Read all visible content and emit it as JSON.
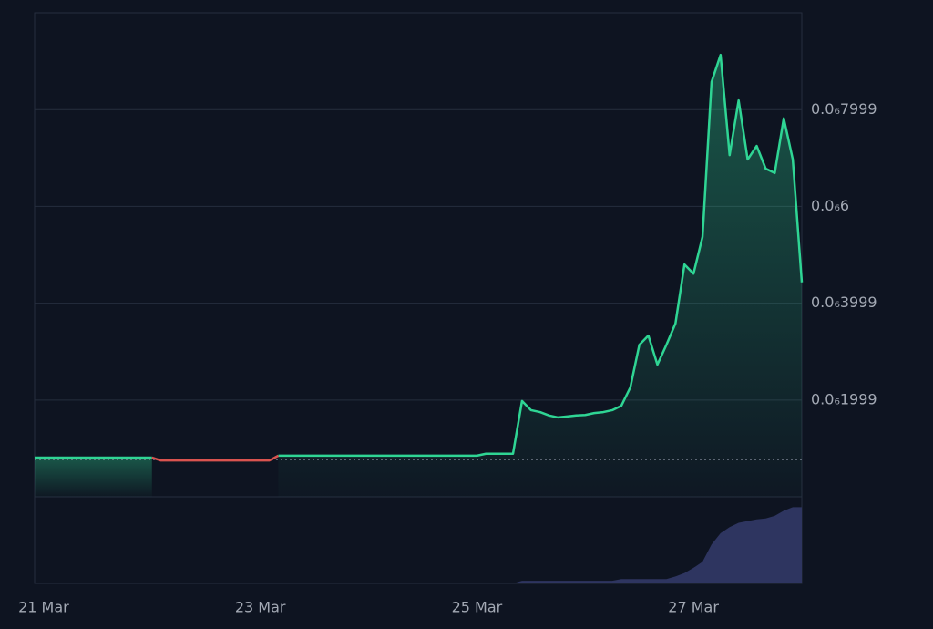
{
  "chart_data": {
    "type": "line",
    "categories": [
      null,
      "21 Mar",
      null,
      null,
      null,
      null,
      null,
      null,
      null,
      null,
      null,
      null,
      null,
      null,
      null,
      null,
      null,
      null,
      null,
      null,
      null,
      null,
      null,
      null,
      null,
      "23 Mar",
      null,
      null,
      null,
      null,
      null,
      null,
      null,
      null,
      null,
      null,
      null,
      null,
      null,
      null,
      null,
      null,
      null,
      null,
      null,
      null,
      null,
      null,
      null,
      "25 Mar",
      null,
      null,
      null,
      null,
      null,
      null,
      null,
      null,
      null,
      null,
      null,
      null,
      null,
      null,
      null,
      null,
      null,
      null,
      null,
      null,
      null,
      null,
      null,
      "27 Mar",
      null,
      null,
      null,
      null,
      null,
      null,
      null,
      null,
      null,
      null,
      null,
      null
    ],
    "series": [
      {
        "color": "#2fd594",
        "values": [
          8.1e-08,
          8.1e-08,
          8.1e-08,
          8.1e-08,
          8.1e-08,
          8.1e-08,
          8.1e-08,
          8.1e-08,
          8.1e-08,
          8.1e-08,
          8.1e-08,
          8.1e-08,
          8.1e-08,
          8.1e-08,
          null,
          null,
          null,
          null,
          null,
          null,
          null,
          null,
          null,
          null,
          null,
          null,
          null,
          8.5e-08,
          8.5e-08,
          8.5e-08,
          8.5e-08,
          8.5e-08,
          8.5e-08,
          8.5e-08,
          8.5e-08,
          8.5e-08,
          8.5e-08,
          8.5e-08,
          8.5e-08,
          8.5e-08,
          8.5e-08,
          8.5e-08,
          8.5e-08,
          8.5e-08,
          8.5e-08,
          8.5e-08,
          8.5e-08,
          8.5e-08,
          8.5e-08,
          8.5e-08,
          8.9e-08,
          8.9e-08,
          8.9e-08,
          8.9e-08,
          1.98e-07,
          1.79e-07,
          1.75e-07,
          1.68e-07,
          1.64e-07,
          1.66e-07,
          1.68e-07,
          1.69e-07,
          1.73e-07,
          1.75e-07,
          1.79e-07,
          1.88e-07,
          2.26e-07,
          3.14e-07,
          3.33e-07,
          2.73e-07,
          3.14e-07,
          3.58e-07,
          4.8e-07,
          4.61e-07,
          5.37e-07,
          8.57e-07,
          9.13e-07,
          7.06e-07,
          8.19e-07,
          6.97e-07,
          7.25e-07,
          6.78e-07,
          6.69e-07,
          7.82e-07,
          6.97e-07,
          4.43e-07
        ]
      },
      {
        "color": "#d9534f",
        "values": [
          null,
          null,
          null,
          null,
          null,
          null,
          null,
          null,
          null,
          null,
          null,
          null,
          null,
          8.1e-08,
          7.5e-08,
          7.5e-08,
          7.5e-08,
          7.5e-08,
          7.5e-08,
          7.5e-08,
          7.5e-08,
          7.5e-08,
          7.5e-08,
          7.5e-08,
          7.5e-08,
          7.5e-08,
          7.5e-08,
          8.5e-08,
          null,
          null,
          null,
          null,
          null,
          null,
          null,
          null,
          null,
          null,
          null,
          null,
          null,
          null,
          null,
          null,
          null,
          null,
          null,
          null,
          null,
          null,
          null,
          null,
          null,
          null,
          null,
          null,
          null,
          null,
          null,
          null,
          null,
          null,
          null,
          null,
          null,
          null,
          null,
          null,
          null,
          null,
          null,
          null,
          null,
          null,
          null,
          null,
          null,
          null,
          null,
          null,
          null,
          null,
          null,
          null,
          null,
          null
        ]
      }
    ],
    "reference_line": 7.7e-08,
    "ylim": [
      0,
      1e-06
    ],
    "yticks": [
      {
        "value": 1.999e-07,
        "label": "0.0₆1999"
      },
      {
        "value": 3.999e-07,
        "label": "0.0₆3999"
      },
      {
        "value": 6e-07,
        "label": "0.0₆6"
      },
      {
        "value": 7.999e-07,
        "label": "0.0₆7999"
      }
    ],
    "grid": true,
    "volume": {
      "color": "#2e3560",
      "ylim": [
        0,
        100
      ],
      "values": [
        0,
        0,
        0,
        0,
        0,
        0,
        0,
        0,
        0,
        0,
        0,
        0,
        0,
        0,
        0,
        0,
        0,
        0,
        0,
        0,
        0,
        0,
        0,
        0,
        0,
        0,
        0,
        0,
        0,
        0,
        0,
        0,
        0,
        0,
        0,
        0,
        0,
        0,
        0,
        0,
        0,
        0,
        0,
        0,
        0,
        0,
        0,
        0,
        0,
        0,
        0,
        0,
        0,
        0,
        3,
        3,
        3,
        3,
        3,
        3,
        3,
        3,
        3,
        3,
        3,
        5,
        5,
        5,
        5,
        5,
        5,
        8,
        12,
        18,
        25,
        45,
        58,
        65,
        70,
        72,
        74,
        75,
        78,
        84,
        88,
        88
      ]
    }
  }
}
